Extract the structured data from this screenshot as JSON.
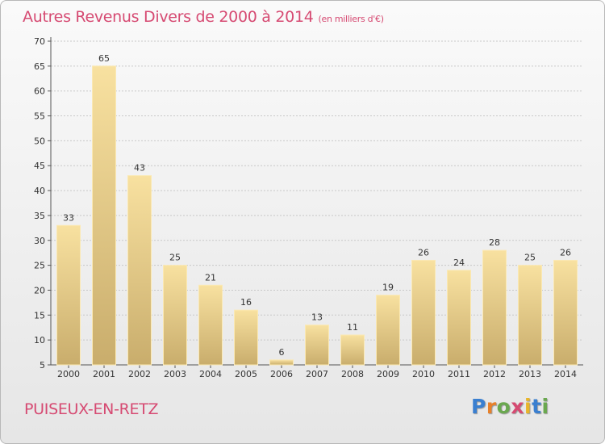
{
  "chart_data": {
    "type": "bar",
    "title": "Autres Revenus Divers de 2000 à 2014",
    "subtitle": "(en milliers d'€)",
    "categories": [
      "2000",
      "2001",
      "2002",
      "2003",
      "2004",
      "2005",
      "2006",
      "2007",
      "2008",
      "2009",
      "2010",
      "2011",
      "2012",
      "2013",
      "2014"
    ],
    "values": [
      33,
      65,
      43,
      25,
      21,
      16,
      6,
      13,
      11,
      19,
      26,
      24,
      28,
      25,
      26
    ],
    "ylim": [
      5,
      70
    ],
    "yticks": [
      5,
      10,
      15,
      20,
      25,
      30,
      35,
      40,
      45,
      50,
      55,
      60,
      65,
      70
    ],
    "grid": true,
    "bar_color": "#f0d58a"
  },
  "footer": {
    "place": "PUISEUX-EN-RETZ",
    "logo": {
      "letters": [
        "P",
        "r",
        "o",
        "x",
        "i",
        "t",
        "i"
      ],
      "colors": [
        "#3a7fd0",
        "#e8812a",
        "#6aa84f",
        "#d64a72",
        "#e8b52a",
        "#3a7fd0",
        "#6aa84f"
      ]
    }
  },
  "colors": {
    "title": "#d64a72",
    "grid": "#c8c8c8"
  }
}
